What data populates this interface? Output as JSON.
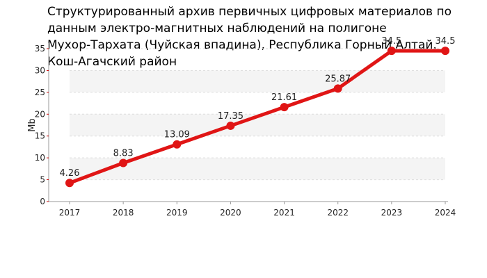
{
  "chart_data": {
    "type": "line",
    "title_lines": [
      "Структурированный архив первичных цифровых материалов по",
      "данным электро-магнитных наблюдений на полигоне",
      "Мухор-Тархата (Чуйская впадина), Республика Горный Алтай.",
      "Кош-Агачский район"
    ],
    "xlabel": "",
    "ylabel": "Mb",
    "categories": [
      "2017",
      "2018",
      "2019",
      "2020",
      "2021",
      "2022",
      "2023",
      "2024"
    ],
    "values": [
      4.26,
      8.83,
      13.09,
      17.35,
      21.61,
      25.87,
      34.5,
      34.5
    ],
    "data_labels": [
      "4.26",
      "8.83",
      "13.09",
      "17.35",
      "21.61",
      "25.87",
      "34.5",
      "34.5"
    ],
    "ylim": [
      0,
      35
    ],
    "yticks": [
      "0",
      "5",
      "10",
      "15",
      "20",
      "25",
      "30",
      "35"
    ],
    "grid": true,
    "line_color": "#e01515",
    "band_color": "#f4f4f4",
    "grid_color": "#dddddd"
  }
}
